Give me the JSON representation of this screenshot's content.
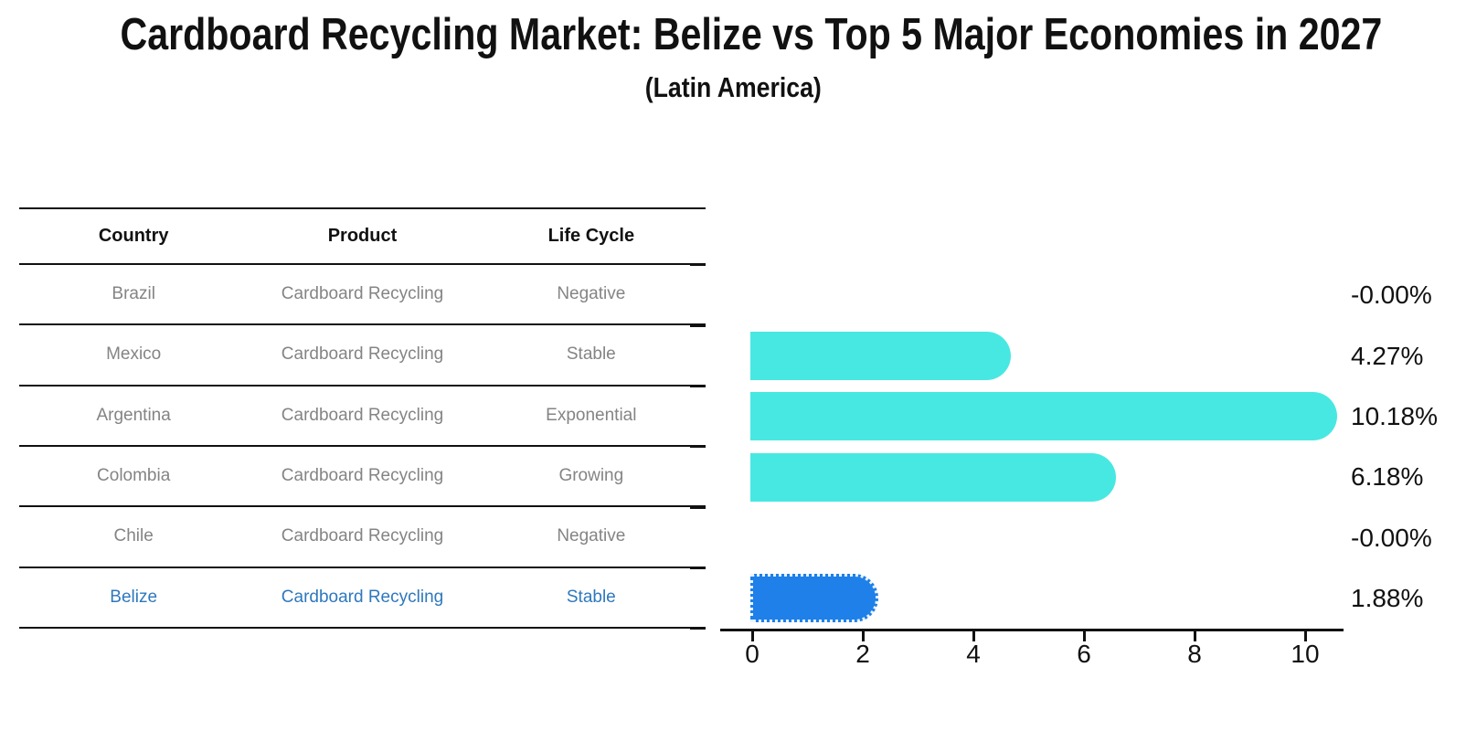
{
  "title": "Cardboard Recycling Market: Belize vs Top 5 Major Economies in 2027",
  "subtitle": "(Latin America)",
  "table": {
    "headers": [
      "Country",
      "Product",
      "Life Cycle"
    ],
    "rows": [
      {
        "country": "Brazil",
        "product": "Cardboard Recycling",
        "life_cycle": "Negative",
        "highlight": false
      },
      {
        "country": "Mexico",
        "product": "Cardboard Recycling",
        "life_cycle": "Stable",
        "highlight": false
      },
      {
        "country": "Argentina",
        "product": "Cardboard Recycling",
        "life_cycle": "Exponential",
        "highlight": false
      },
      {
        "country": "Colombia",
        "product": "Cardboard Recycling",
        "life_cycle": "Growing",
        "highlight": false
      },
      {
        "country": "Chile",
        "product": "Cardboard Recycling",
        "life_cycle": "Negative",
        "highlight": false
      },
      {
        "country": "Belize",
        "product": "Cardboard Recycling",
        "life_cycle": "Stable",
        "highlight": true
      }
    ]
  },
  "chart_data": {
    "type": "bar",
    "orientation": "horizontal",
    "categories": [
      "Brazil",
      "Mexico",
      "Argentina",
      "Colombia",
      "Chile",
      "Belize"
    ],
    "values": [
      -0.0,
      4.27,
      10.18,
      6.18,
      -0.0,
      1.88
    ],
    "value_labels": [
      "-0.00%",
      "4.27%",
      "10.18%",
      "6.18%",
      "-0.00%",
      "1.88%"
    ],
    "x_ticks": [
      0,
      2,
      4,
      6,
      8,
      10
    ],
    "xlim": [
      -0.6,
      10.7
    ],
    "grid": false,
    "legend": false,
    "bar_color_default": "#48E8E2",
    "bar_color_highlight": "#1E80E8",
    "highlight_index": 5
  },
  "colors": {
    "text": "#111111",
    "table_row_text": "#848484",
    "highlight_text": "#2e78bd",
    "axis": "#111111"
  }
}
